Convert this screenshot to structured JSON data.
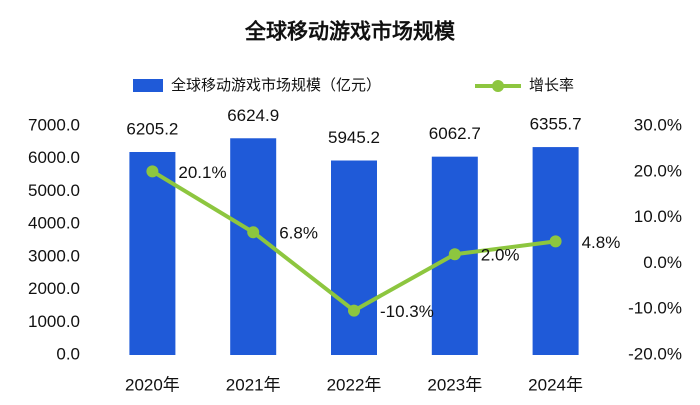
{
  "chart_data": {
    "type": "combo",
    "title": "全球移动游戏市场规模",
    "categories": [
      "2020年",
      "2021年",
      "2022年",
      "2023年",
      "2024年"
    ],
    "series": [
      {
        "name": "全球移动游戏市场规模（亿元）",
        "type": "bar",
        "color": "#1f5ad8",
        "values": [
          6205.2,
          6624.9,
          5945.2,
          6062.7,
          6355.7
        ]
      },
      {
        "name": "增长率",
        "type": "line",
        "axis": "y2",
        "color": "#8dc63f",
        "values": [
          20.1,
          6.8,
          -10.3,
          2.0,
          4.8
        ],
        "value_labels": [
          "20.1%",
          "6.8%",
          "-10.3%",
          "2.0%",
          "4.8%"
        ]
      }
    ],
    "ylim": [
      0,
      7000
    ],
    "yticks": [
      {
        "value": 0,
        "label": "0.0"
      },
      {
        "value": 1000,
        "label": "1000.0"
      },
      {
        "value": 2000,
        "label": "2000.0"
      },
      {
        "value": 3000,
        "label": "3000.0"
      },
      {
        "value": 4000,
        "label": "4000.0"
      },
      {
        "value": 5000,
        "label": "5000.0"
      },
      {
        "value": 6000,
        "label": "6000.0"
      },
      {
        "value": 7000,
        "label": "7000.0"
      }
    ],
    "y2lim": [
      -20,
      30
    ],
    "y2ticks": [
      {
        "value": -20,
        "label": "-20.0%"
      },
      {
        "value": -10,
        "label": "-10.0%"
      },
      {
        "value": 0,
        "label": "0.0%"
      },
      {
        "value": 10,
        "label": "10.0%"
      },
      {
        "value": 20,
        "label": "20.0%"
      },
      {
        "value": 30,
        "label": "30.0%"
      }
    ]
  }
}
